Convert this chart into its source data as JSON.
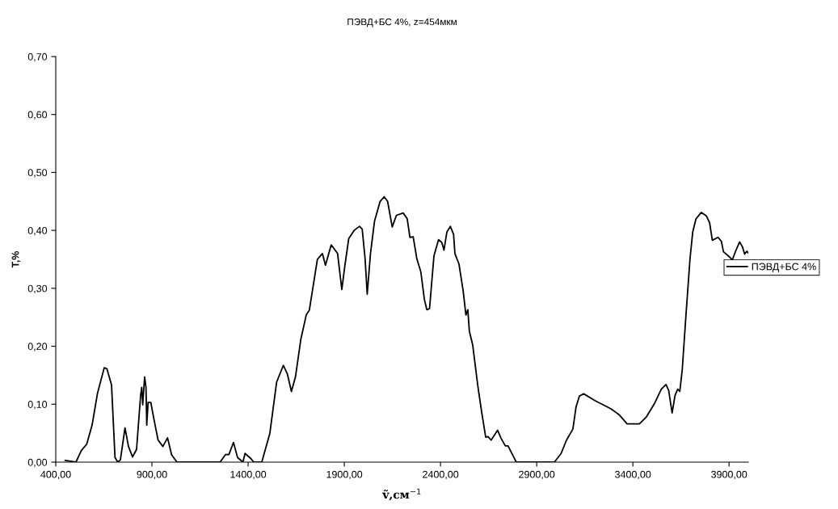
{
  "chart_data": {
    "type": "line",
    "title": "ПЭВД+БС 4%, z=454мкм",
    "xlabel": "ṽ,см$^{−1}$",
    "ylabel": "T,%",
    "x": [
      449,
      505,
      533,
      561,
      589,
      617,
      652,
      666,
      690,
      708,
      722,
      736,
      760,
      778,
      799,
      820,
      841,
      847,
      852,
      862,
      869,
      873,
      880,
      894,
      911,
      932,
      957,
      981,
      1002,
      1030,
      1254,
      1282,
      1300,
      1324,
      1345,
      1373,
      1384,
      1415,
      1429,
      1471,
      1513,
      1548,
      1583,
      1604,
      1625,
      1646,
      1674,
      1702,
      1718,
      1760,
      1786,
      1802,
      1832,
      1865,
      1887,
      1902,
      1923,
      1951,
      1979,
      1993,
      2008,
      2019,
      2036,
      2057,
      2086,
      2107,
      2125,
      2149,
      2171,
      2206,
      2227,
      2241,
      2258,
      2277,
      2298,
      2316,
      2329,
      2343,
      2366,
      2390,
      2407,
      2418,
      2433,
      2451,
      2468,
      2475,
      2496,
      2518,
      2532,
      2542,
      2550,
      2567,
      2595,
      2616,
      2635,
      2647,
      2663,
      2697,
      2715,
      2737,
      2751,
      2794,
      2992,
      3027,
      3055,
      3088,
      3105,
      3122,
      3144,
      3204,
      3286,
      3328,
      3370,
      3434,
      3470,
      3512,
      3548,
      3572,
      3586,
      3604,
      3619,
      3633,
      3644,
      3657,
      3675,
      3697,
      3711,
      3728,
      3756,
      3782,
      3799,
      3813,
      3843,
      3860,
      3871,
      3896,
      3917,
      3935,
      3955,
      3969,
      3981,
      3992,
      4000
    ],
    "series": [
      {
        "name": "ПЭВД+БС 4%",
        "color": "#000000",
        "values": [
          0.003,
          0,
          0.02,
          0.031,
          0.064,
          0.119,
          0.163,
          0.161,
          0.133,
          0.008,
          0,
          0.004,
          0.059,
          0.027,
          0.009,
          0.022,
          0.115,
          0.129,
          0.099,
          0.147,
          0.129,
          0.064,
          0.103,
          0.103,
          0.073,
          0.038,
          0.027,
          0.042,
          0.013,
          0,
          0,
          0.013,
          0.013,
          0.034,
          0.008,
          0,
          0.015,
          0.006,
          0,
          0,
          0.05,
          0.138,
          0.167,
          0.152,
          0.122,
          0.147,
          0.212,
          0.254,
          0.262,
          0.35,
          0.36,
          0.34,
          0.375,
          0.36,
          0.298,
          0.337,
          0.386,
          0.4,
          0.407,
          0.402,
          0.351,
          0.29,
          0.36,
          0.416,
          0.45,
          0.458,
          0.45,
          0.406,
          0.426,
          0.43,
          0.42,
          0.388,
          0.389,
          0.351,
          0.328,
          0.281,
          0.263,
          0.265,
          0.356,
          0.384,
          0.379,
          0.366,
          0.397,
          0.407,
          0.393,
          0.36,
          0.342,
          0.295,
          0.254,
          0.263,
          0.226,
          0.203,
          0.129,
          0.082,
          0.043,
          0.044,
          0.038,
          0.055,
          0.041,
          0.028,
          0.028,
          0,
          0,
          0.015,
          0.038,
          0.057,
          0.096,
          0.114,
          0.118,
          0.106,
          0.092,
          0.082,
          0.066,
          0.066,
          0.078,
          0.101,
          0.126,
          0.134,
          0.124,
          0.085,
          0.115,
          0.126,
          0.122,
          0.161,
          0.249,
          0.351,
          0.397,
          0.42,
          0.431,
          0.425,
          0.413,
          0.383,
          0.388,
          0.381,
          0.363,
          0.356,
          0.349,
          0.365,
          0.38,
          0.372,
          0.359,
          0.364,
          0.361
        ]
      }
    ],
    "xlim": [
      400,
      4000
    ],
    "xticks": [
      {
        "value": 400,
        "label": "400,00"
      },
      {
        "value": 900,
        "label": "900,00"
      },
      {
        "value": 1400,
        "label": "1400,00"
      },
      {
        "value": 1900,
        "label": "1900,00"
      },
      {
        "value": 2400,
        "label": "2400,00"
      },
      {
        "value": 2900,
        "label": "2900,00"
      },
      {
        "value": 3400,
        "label": "3400,00"
      },
      {
        "value": 3900,
        "label": "3900,00"
      }
    ],
    "ylim": [
      0,
      0.7
    ],
    "yticks": [
      {
        "value": 0,
        "label": "0,00"
      },
      {
        "value": 0.1,
        "label": "0,10"
      },
      {
        "value": 0.2,
        "label": "0,20"
      },
      {
        "value": 0.3,
        "label": "0,30"
      },
      {
        "value": 0.4,
        "label": "0,40"
      },
      {
        "value": 0.5,
        "label": "0,50"
      },
      {
        "value": 0.6,
        "label": "0,60"
      },
      {
        "value": 0.7,
        "label": "0,70"
      }
    ],
    "grid": false,
    "legend": "right",
    "line_style": "solid",
    "marker": "none"
  }
}
